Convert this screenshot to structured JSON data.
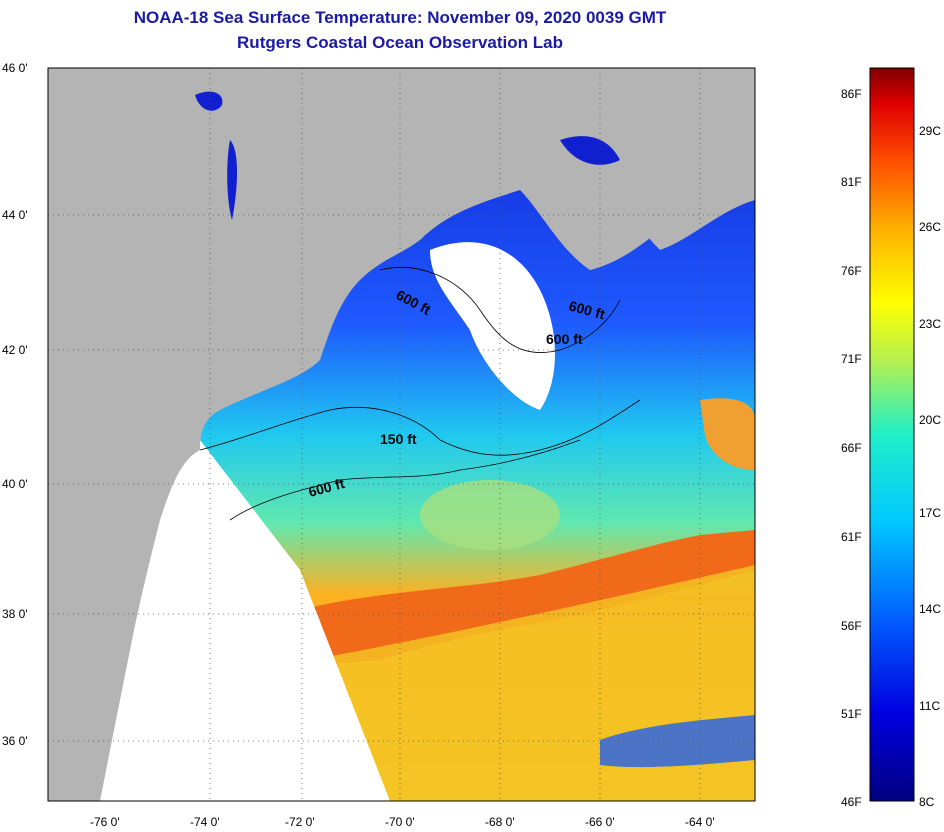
{
  "title": "NOAA-18 Sea Surface Temperature:  November 09, 2020 0039 GMT",
  "subtitle": "Rutgers Coastal Ocean Observation Lab",
  "lat_ticks": [
    "46 0'",
    "44 0'",
    "42 0'",
    "40 0'",
    "38 0'",
    "36 0'"
  ],
  "lon_ticks": [
    "-76 0'",
    "-74 0'",
    "-72 0'",
    "-70 0'",
    "-68 0'",
    "-66 0'",
    "-64 0'"
  ],
  "contours": [
    "600 ft",
    "600 ft",
    "600 ft",
    "150 ft",
    "600 ft"
  ],
  "colorbar": {
    "fahrenheit": [
      "86F",
      "81F",
      "76F",
      "71F",
      "66F",
      "61F",
      "56F",
      "51F",
      "46F"
    ],
    "celsius": [
      "29C",
      "26C",
      "23C",
      "20C",
      "17C",
      "14C",
      "11C",
      "8C"
    ]
  },
  "colors": {
    "land": "#b4b4b4",
    "no_data": "#ffffff",
    "title": "#1a1aa6",
    "cold": "#0a14c8",
    "warm": "#e8501e"
  }
}
